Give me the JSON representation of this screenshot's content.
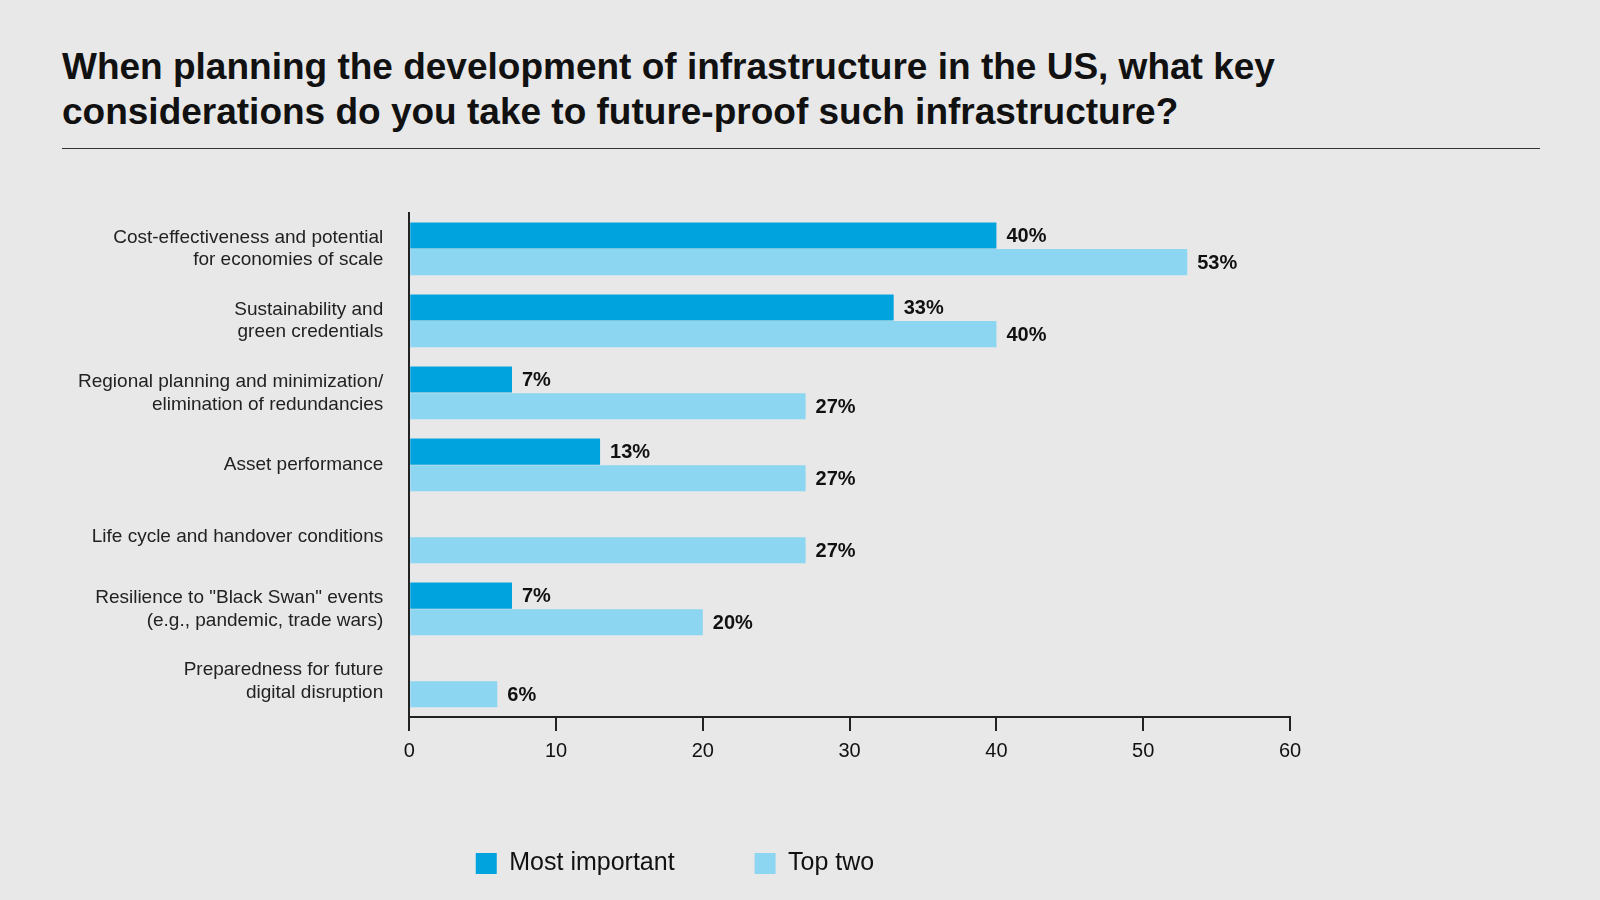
{
  "chart_data": {
    "type": "bar",
    "title": "When planning the development of infrastructure in the US, what key considerations do you take to future-proof such infrastructure?",
    "orientation": "horizontal",
    "categories": [
      [
        "Cost-effectiveness and potential",
        "for economies of scale"
      ],
      [
        "Sustainability and",
        "green credentials"
      ],
      [
        "Regional planning and minimization/",
        "elimination of redundancies"
      ],
      [
        "Asset performance"
      ],
      [
        "Life cycle and handover conditions"
      ],
      [
        "Resilience to \"Black Swan\" events",
        "(e.g., pandemic, trade wars)"
      ],
      [
        "Preparedness for future",
        "digital disruption"
      ]
    ],
    "series": [
      {
        "name": "Most important",
        "color": "#00a3dd",
        "values": [
          40,
          33,
          7,
          13,
          null,
          7,
          null
        ],
        "value_labels": [
          "40%",
          "33%",
          "7%",
          "13%",
          null,
          "7%",
          null
        ]
      },
      {
        "name": "Top two",
        "color": "#8dd6f1",
        "values": [
          53,
          40,
          27,
          27,
          27,
          20,
          6
        ],
        "value_labels": [
          "53%",
          "40%",
          "27%",
          "27%",
          "27%",
          "20%",
          "6%"
        ]
      }
    ],
    "xlim": [
      0,
      60
    ],
    "xticks": [
      0,
      10,
      20,
      30,
      40,
      50,
      60
    ],
    "grid": false,
    "legend": "bottom",
    "data_labels": true
  }
}
